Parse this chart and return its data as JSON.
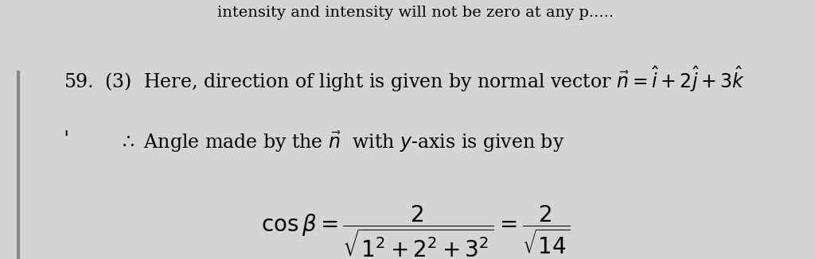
{
  "bg_color": "#d4d4d4",
  "top_text": "intensity and intensity will not be zero at any p.....",
  "line1_prefix": "59.  (3)  Here, direction of light is given by normal vector ",
  "line1_math": "$\\vec{n} = \\hat{i} + 2\\hat{j} + 3\\hat{k}$",
  "line2_prefix": "$\\therefore$ Angle made by the $\\vec{n}$  with $y$-axis is given by",
  "tick_mark": "'",
  "formula": "$\\cos \\beta = \\dfrac{2}{\\sqrt{1^2 + 2^2 + 3^2}} = \\dfrac{2}{\\sqrt{14}}$",
  "font_size_main": 17,
  "font_size_formula": 20,
  "font_size_top": 14,
  "left_bar_color": "#888888"
}
